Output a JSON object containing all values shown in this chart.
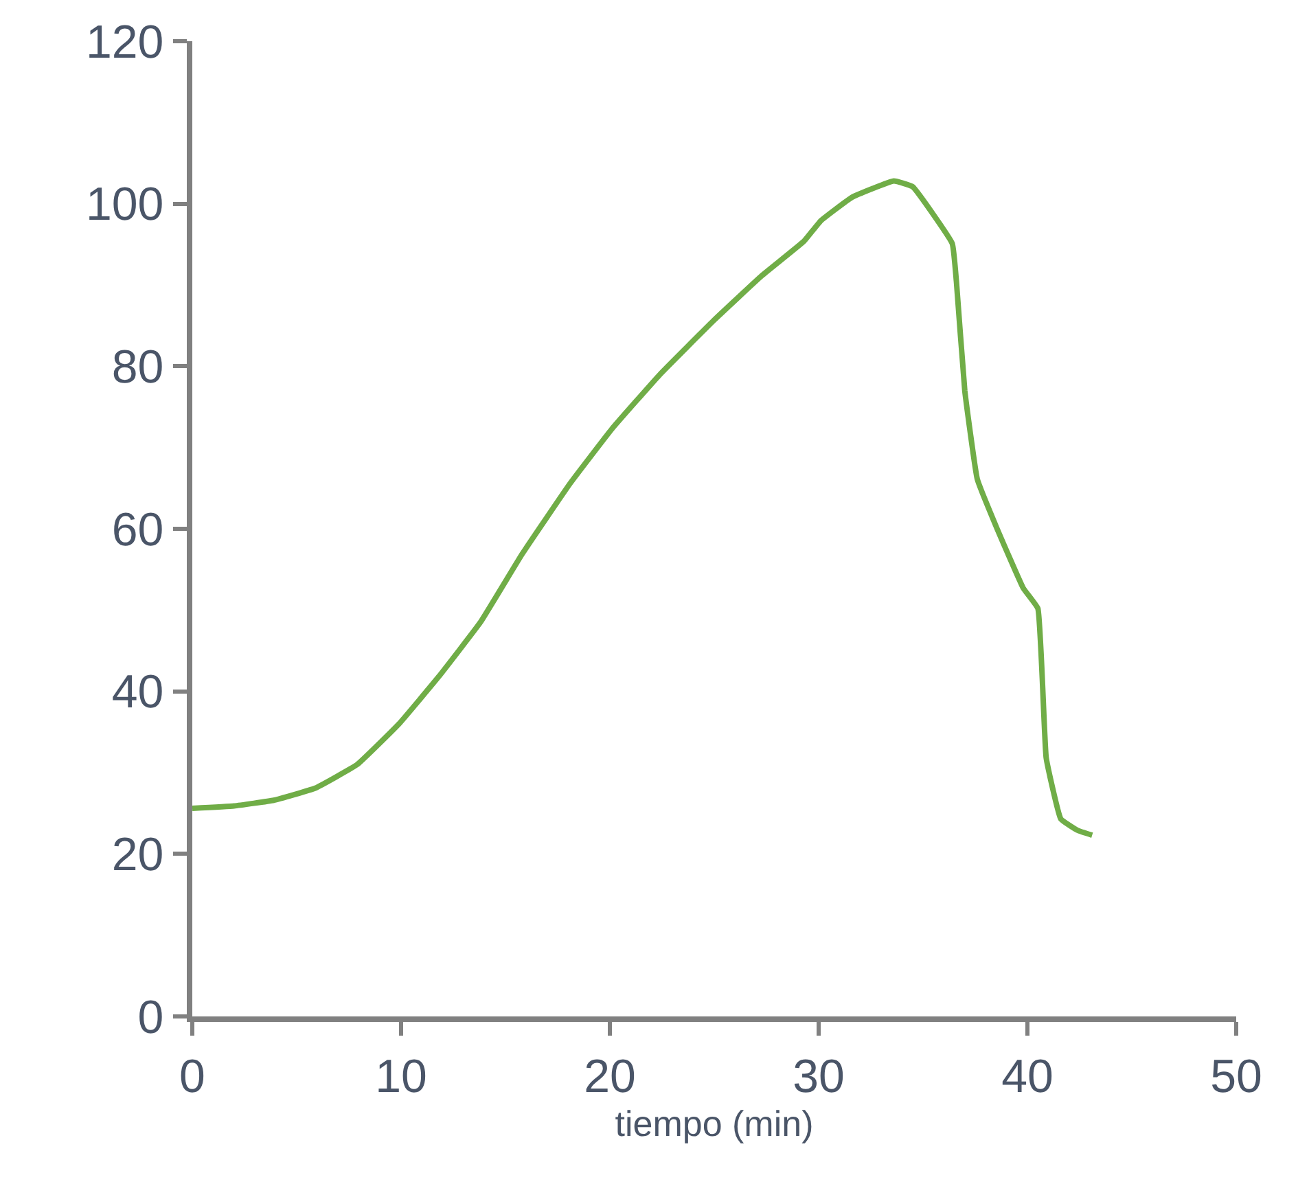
{
  "chart_data": {
    "type": "line",
    "xlabel": "tiempo (min)",
    "xlim": [
      0,
      50
    ],
    "xticks": [
      0,
      10,
      20,
      30,
      40,
      50
    ],
    "ylim": [
      0,
      120
    ],
    "yticks": [
      0,
      20,
      40,
      60,
      80,
      100,
      120
    ],
    "legend": false,
    "marker": "none",
    "line_style": "solid",
    "series": [
      {
        "color": "#70ad47",
        "x": [
          0,
          2,
          3.9,
          5.9,
          7.9,
          9.9,
          11.8,
          13.8,
          15.8,
          18.1,
          20.1,
          22.4,
          25,
          27.3,
          29.3,
          30.1,
          31.6,
          33.6,
          34.5,
          36.4,
          36.6,
          37.0,
          37.6,
          38.5,
          39.8,
          40.5,
          40.9,
          41.6,
          42.4,
          43.1
        ],
        "values": [
          25.6,
          25.9,
          26.6,
          28.1,
          31,
          36,
          41.8,
          48.5,
          56.9,
          65.6,
          72.3,
          79,
          85.7,
          91.2,
          95.4,
          97.9,
          100.8,
          102.8,
          102.1,
          95.1,
          90.4,
          77,
          66.1,
          60.3,
          52.7,
          50.2,
          31.8,
          24.3,
          22.9,
          22.3
        ]
      }
    ]
  }
}
